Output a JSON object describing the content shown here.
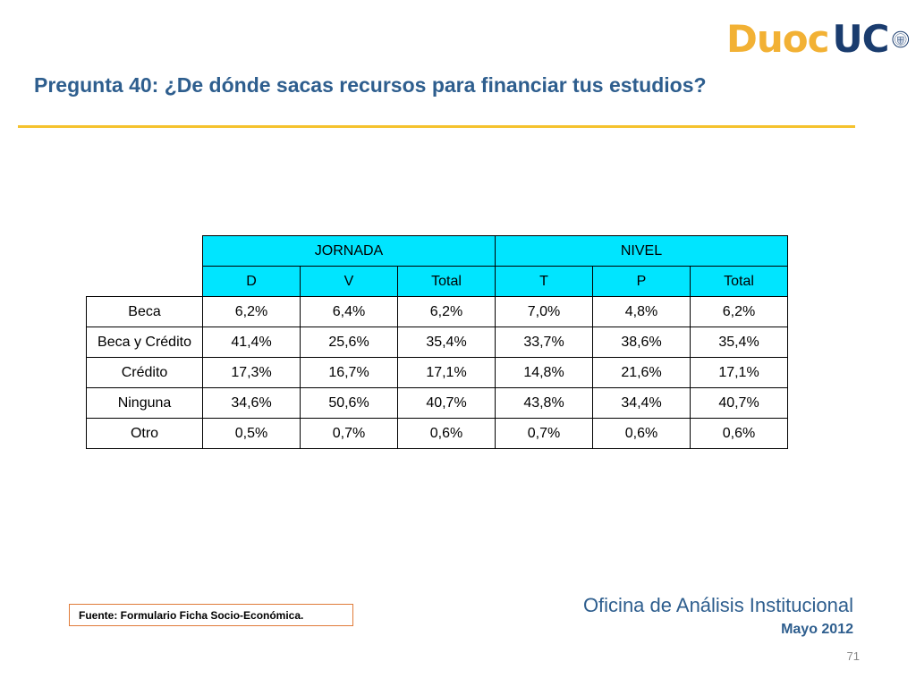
{
  "logo": {
    "text_duoc": "Duoc",
    "text_uc": "UC"
  },
  "title": "Pregunta 40: ¿De dónde sacas recursos para financiar tus estudios?",
  "table": {
    "groups": [
      "JORNADA",
      "NIVEL"
    ],
    "columns": [
      "D",
      "V",
      "Total",
      "T",
      "P",
      "Total"
    ],
    "rows": [
      {
        "label": "Beca",
        "values": [
          "6,2%",
          "6,4%",
          "6,2%",
          "7,0%",
          "4,8%",
          "6,2%"
        ]
      },
      {
        "label": "Beca y Crédito",
        "values": [
          "41,4%",
          "25,6%",
          "35,4%",
          "33,7%",
          "38,6%",
          "35,4%"
        ]
      },
      {
        "label": "Crédito",
        "values": [
          "17,3%",
          "16,7%",
          "17,1%",
          "14,8%",
          "21,6%",
          "17,1%"
        ]
      },
      {
        "label": "Ninguna",
        "values": [
          "34,6%",
          "50,6%",
          "40,7%",
          "43,8%",
          "34,4%",
          "40,7%"
        ]
      },
      {
        "label": "Otro",
        "values": [
          "0,5%",
          "0,7%",
          "0,6%",
          "0,7%",
          "0,6%",
          "0,6%"
        ]
      }
    ]
  },
  "source": "Fuente: Formulario Ficha Socio-Económica.",
  "footer": {
    "office": "Oficina de Análisis Institucional",
    "date": "Mayo 2012",
    "page": "71"
  },
  "colors": {
    "title": "#2e5e8e",
    "rule": "#f5c22d",
    "header_fill": "#00e5ff",
    "source_border": "#e07b39"
  }
}
